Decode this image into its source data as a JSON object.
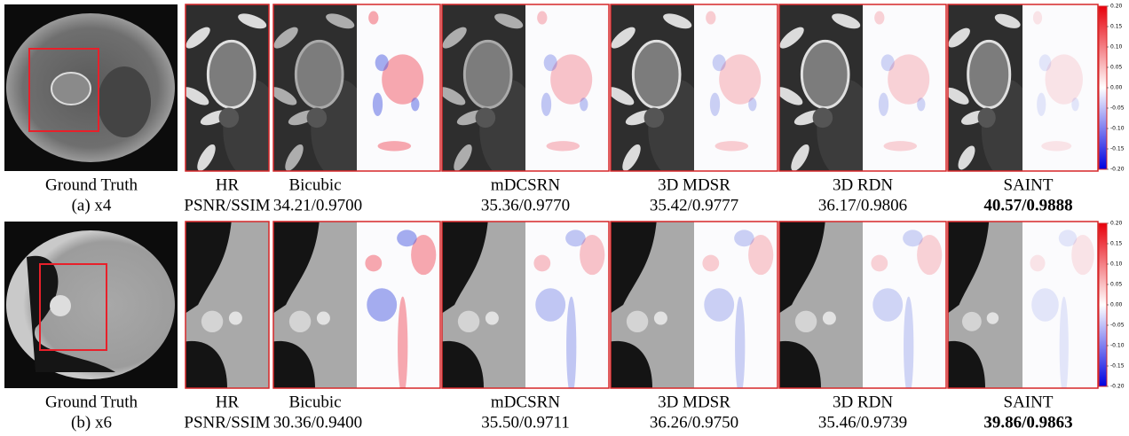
{
  "rows": [
    {
      "gt_caption": "Ground Truth",
      "scale_caption": "(a) x4",
      "hr_caption": "HR",
      "metric_caption": "PSNR/SSIM",
      "methods": [
        {
          "name": "Bicubic",
          "score": "34.21/0.9700"
        },
        {
          "name": "mDCSRN",
          "score": "35.36/0.9770"
        },
        {
          "name": "3D MDSR",
          "score": "35.42/0.9777"
        },
        {
          "name": "3D RDN",
          "score": "36.17/0.9806"
        },
        {
          "name": "SAINT",
          "score": "40.57/0.9888",
          "score_bold": true
        }
      ]
    },
    {
      "gt_caption": "Ground Truth",
      "scale_caption": "(b) x6",
      "hr_caption": "HR",
      "metric_caption": "PSNR/SSIM",
      "methods": [
        {
          "name": "Bicubic",
          "score": "30.36/0.9400"
        },
        {
          "name": "mDCSRN",
          "score": "35.50/0.9711"
        },
        {
          "name": "3D MDSR",
          "score": "36.26/0.9750"
        },
        {
          "name": "3D RDN",
          "score": "35.46/0.9739"
        },
        {
          "name": "SAINT",
          "score": "39.86/0.9863",
          "score_bold": true
        }
      ]
    }
  ],
  "colorbar": {
    "ticks": [
      {
        "value": 0.2,
        "label": "0.20"
      },
      {
        "value": 0.15,
        "label": "0.15"
      },
      {
        "value": 0.1,
        "label": "0.10"
      },
      {
        "value": 0.05,
        "label": "0.05"
      },
      {
        "value": 0,
        "label": "0.00"
      },
      {
        "value": -0.05,
        "label": "-0.05"
      },
      {
        "value": -0.1,
        "label": "-0.10"
      },
      {
        "value": -0.15,
        "label": "-0.15"
      },
      {
        "value": -0.2,
        "label": "-0.20"
      }
    ]
  }
}
